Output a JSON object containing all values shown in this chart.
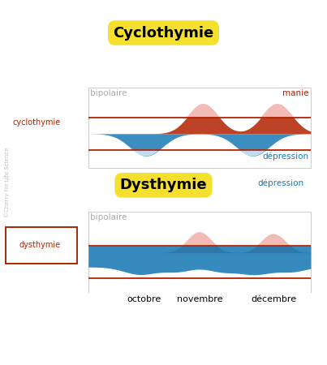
{
  "title_cyclo": "Cyclothymie",
  "title_dys": "Dysthymie",
  "label_bipolaire": "bipolaire",
  "label_manie": "manie",
  "label_depression": "dépression",
  "label_cyclothymie": "cyclothymie",
  "label_dysthymie": "dysthymie",
  "label_copyright": "©Cherry for Life Science",
  "xlabel_ticks": [
    "octobre",
    "novembre",
    "décembre"
  ],
  "color_red_dark": "#B22200",
  "color_red_light": "#F0B0A8",
  "color_blue_dark": "#1A7AB5",
  "color_blue_light": "#B8D8EE",
  "color_yellow": "#F5E030",
  "color_gray": "#AAAAAA",
  "color_border": "#CCCCCC",
  "color_bg": "#FFFFFF"
}
